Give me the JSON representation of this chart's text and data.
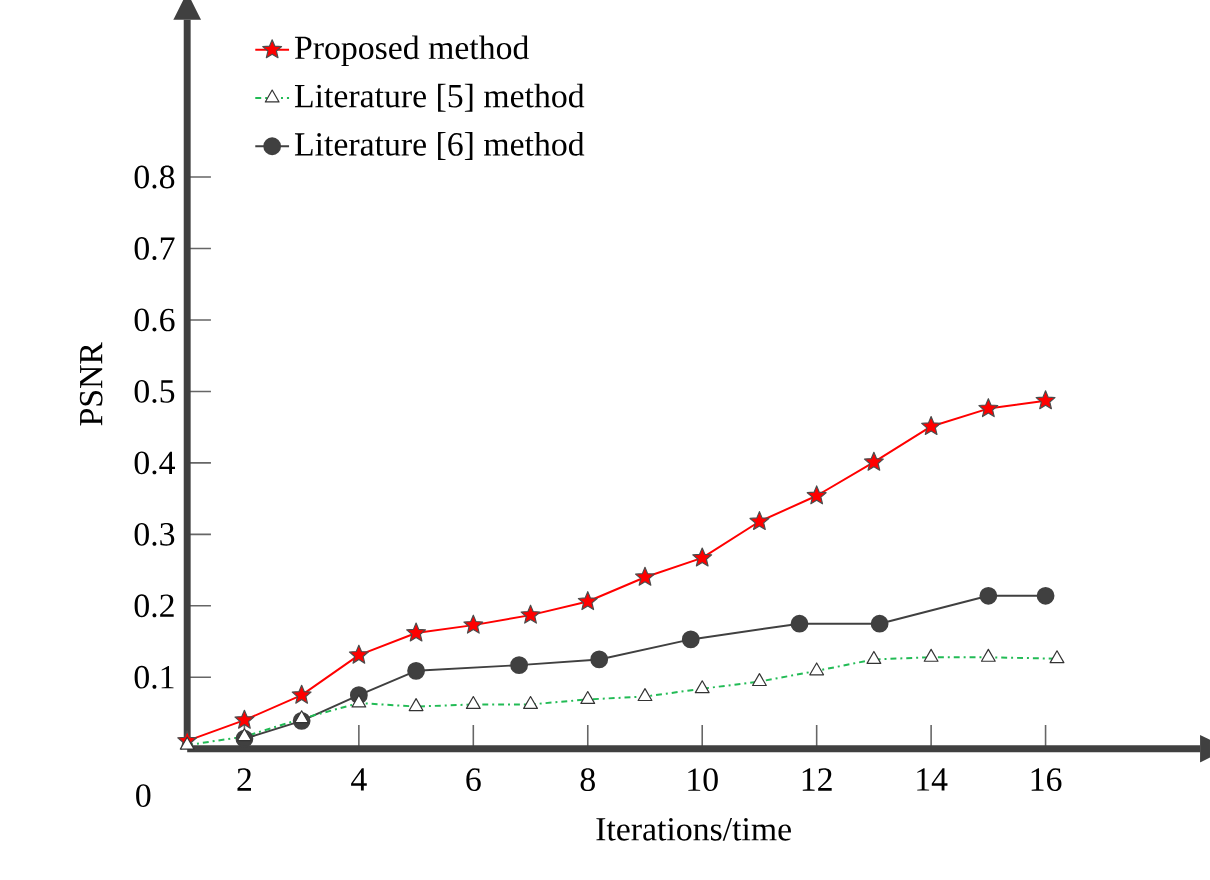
{
  "chart_data": {
    "type": "line",
    "xlabel": "Iterations/time",
    "ylabel": "PSNR",
    "xlim": [
      1,
      18.7
    ],
    "ylim": [
      0,
      1.02
    ],
    "xticks": [
      2,
      4,
      6,
      8,
      10,
      12,
      14,
      16
    ],
    "yticks": [
      0.1,
      0.2,
      0.3,
      0.4,
      0.5,
      0.6,
      0.7,
      0.8
    ],
    "annotations": [
      "0"
    ],
    "legend": "top left",
    "grid": false,
    "series": [
      {
        "name": "Proposed method",
        "color": "#ff0000",
        "marker": "star",
        "line_style": "solid",
        "x": [
          1,
          2,
          3,
          4,
          5,
          6,
          7,
          8,
          9,
          10,
          11,
          12,
          13,
          14,
          15,
          16
        ],
        "values": [
          0.011,
          0.04,
          0.075,
          0.131,
          0.162,
          0.173,
          0.187,
          0.206,
          0.24,
          0.267,
          0.318,
          0.354,
          0.401,
          0.451,
          0.476,
          0.487
        ]
      },
      {
        "name": "Literature [5] method",
        "color": "#22bb55",
        "marker": "triangle",
        "line_style": "dashdotted",
        "x": [
          1,
          2,
          3,
          4,
          5,
          6,
          7,
          8,
          9,
          10,
          11,
          12,
          13,
          14,
          15,
          16.2
        ],
        "values": [
          0.005,
          0.017,
          0.042,
          0.064,
          0.059,
          0.062,
          0.062,
          0.069,
          0.073,
          0.084,
          0.094,
          0.109,
          0.125,
          0.128,
          0.128,
          0.126
        ]
      },
      {
        "name": "Literature [6] method",
        "color": "#404040",
        "marker": "circle",
        "line_style": "solid",
        "x": [
          2,
          3,
          4,
          5,
          6.8,
          8.2,
          9.8,
          11.7,
          13.1,
          15,
          16
        ],
        "values": [
          0.014,
          0.039,
          0.075,
          0.109,
          0.117,
          0.125,
          0.153,
          0.175,
          0.175,
          0.214,
          0.214
        ]
      }
    ]
  }
}
